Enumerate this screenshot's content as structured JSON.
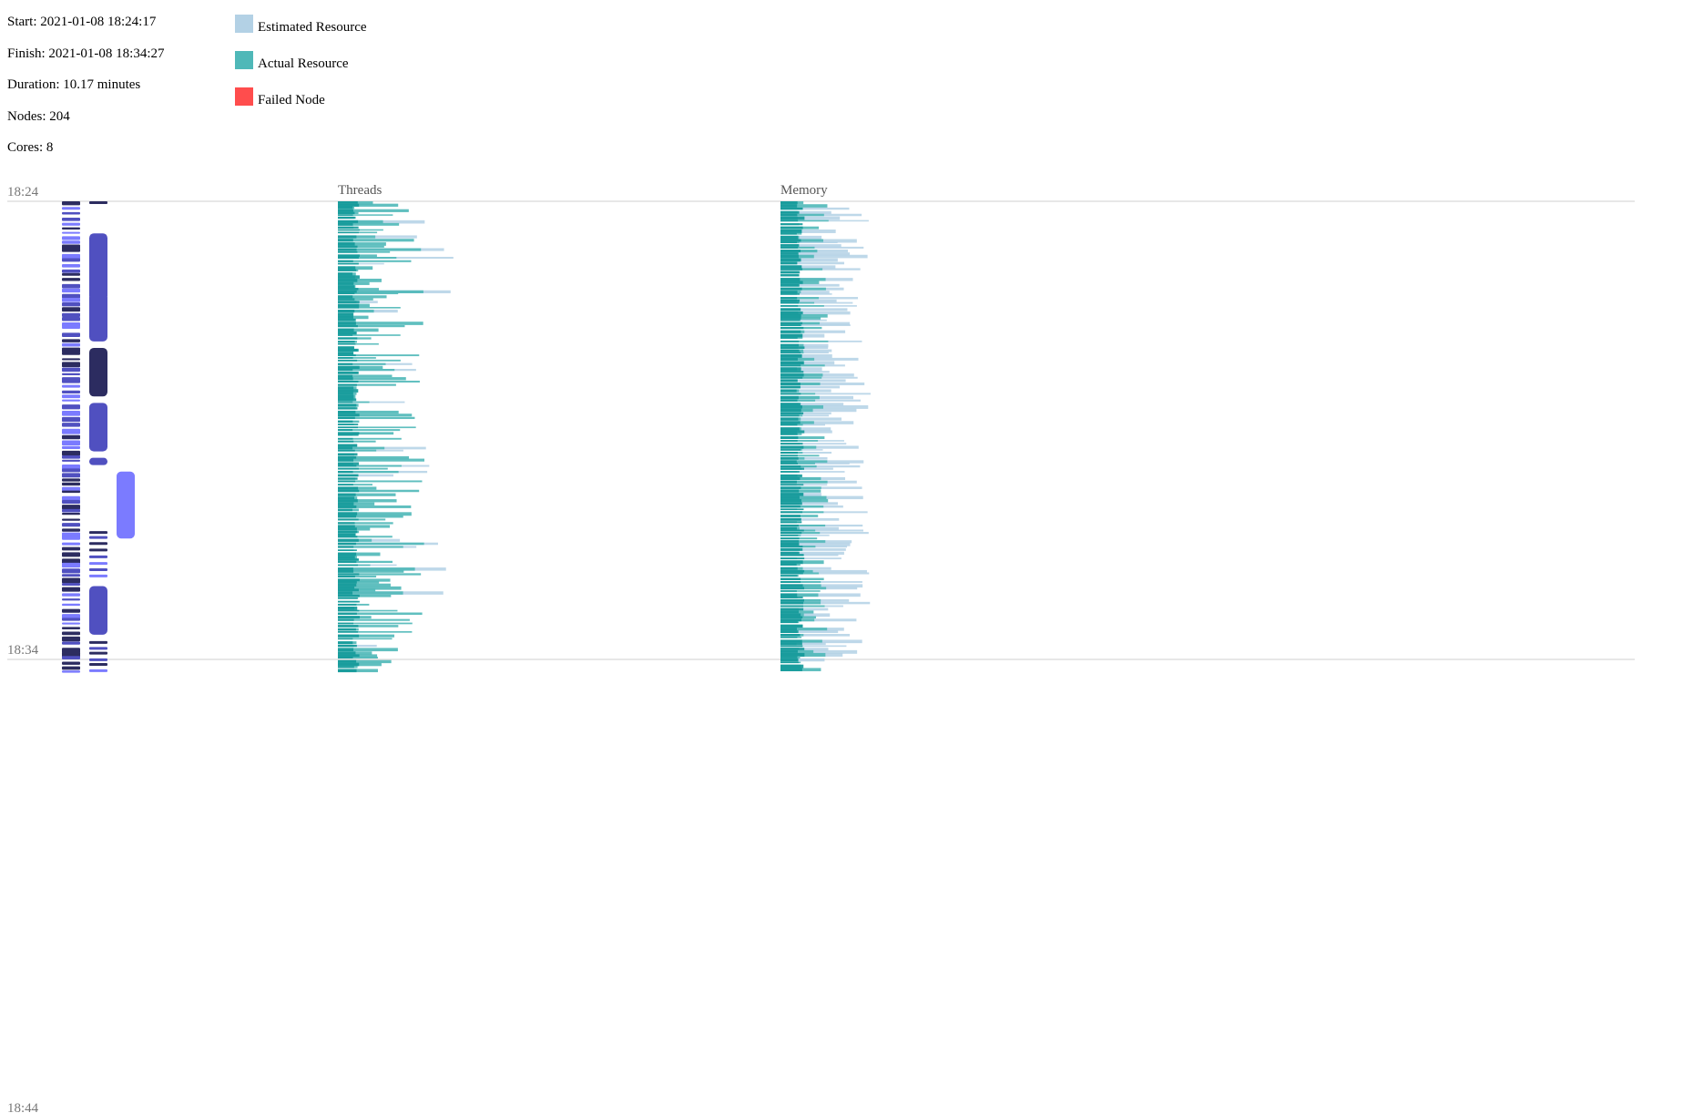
{
  "summary": {
    "start": "Start: 2021-01-08 18:24:17",
    "finish": "Finish: 2021-01-08 18:34:27",
    "duration": "Duration: 10.17 minutes",
    "nodes": "Nodes: 204",
    "cores": "Cores: 8"
  },
  "legend": [
    {
      "label": "Estimated Resource",
      "color": "#b3d1e5"
    },
    {
      "label": "Actual Resource",
      "color": "#4fb8b8"
    },
    {
      "label": "Failed Node",
      "color": "#ff4d4d"
    }
  ],
  "chart_data": {
    "type": "timeline",
    "time_axis": {
      "ticks": [
        "18:24",
        "18:34",
        "18:44"
      ],
      "start": "18:24:00",
      "end": "18:44:00"
    },
    "panels": [
      "Threads",
      "Memory"
    ],
    "colors": {
      "node_light": "#7b7bff",
      "node_mid": "#5050c0",
      "node_dark": "#2c2c60",
      "estimated": "#b3d1e5",
      "actual": "#4fb8b8",
      "actual_dark": "#139999"
    },
    "long_jobs": [
      {
        "lane": 1,
        "start_min": 0.7,
        "end_min": 2.2,
        "shade": "mid"
      },
      {
        "lane": 1,
        "start_min": 2.0,
        "end_min": 3.1,
        "shade": "mid"
      },
      {
        "lane": 1,
        "start_min": 3.2,
        "end_min": 4.3,
        "shade": "dark"
      },
      {
        "lane": 1,
        "start_min": 4.4,
        "end_min": 5.5,
        "shade": "mid"
      },
      {
        "lane": 2,
        "start_min": 5.9,
        "end_min": 7.4,
        "shade": "light"
      },
      {
        "lane": 1,
        "start_min": 8.4,
        "end_min": 9.5,
        "shade": "mid"
      }
    ],
    "node_count": 204,
    "cores": 8
  }
}
